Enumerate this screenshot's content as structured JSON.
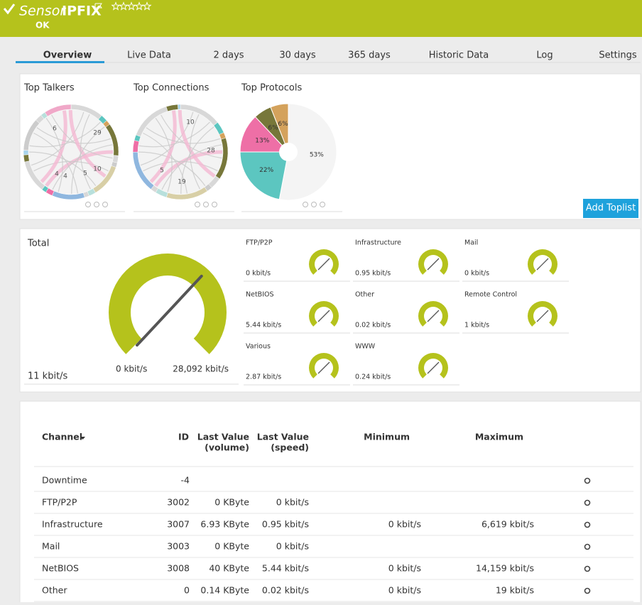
{
  "header": {
    "prefix": "Sensor",
    "name": "IPFIX",
    "status": "OK"
  },
  "tabs": [
    "Overview",
    "Live Data",
    "2 days",
    "30 days",
    "365 days",
    "Historic Data",
    "Log",
    "Settings"
  ],
  "toplists": [
    {
      "title": "Top Talkers",
      "labels": [
        "29",
        "10",
        "6",
        "5",
        "4",
        "4"
      ]
    },
    {
      "title": "Top Connections",
      "labels": [
        "10",
        "28",
        "19",
        "5"
      ]
    },
    {
      "title": "Top Protocols",
      "values": [
        53,
        22,
        13,
        6,
        6
      ],
      "value_labels": [
        "53%",
        "22%",
        "13%",
        "6%",
        "6%"
      ],
      "colors": [
        "#f4f4f4",
        "#5cc6c0",
        "#ee6fa6",
        "#77773a",
        "#d4a25c"
      ]
    }
  ],
  "add_toplist": "Add Toplist",
  "total": {
    "title": "Total",
    "value": "11 kbit/s",
    "min": "0 kbit/s",
    "max": "28,092 kbit/s"
  },
  "gauges": [
    {
      "name": "FTP/P2P",
      "value": "0 kbit/s"
    },
    {
      "name": "Infrastructure",
      "value": "0.95 kbit/s"
    },
    {
      "name": "Mail",
      "value": "0 kbit/s"
    },
    {
      "name": "NetBIOS",
      "value": "5.44 kbit/s"
    },
    {
      "name": "Other",
      "value": "0.02 kbit/s"
    },
    {
      "name": "Remote Control",
      "value": "1 kbit/s"
    },
    {
      "name": "Various",
      "value": "2.87 kbit/s"
    },
    {
      "name": "WWW",
      "value": "0.24 kbit/s"
    }
  ],
  "table": {
    "headers": [
      "Channel",
      "ID",
      [
        "Last Value",
        "(volume)"
      ],
      [
        "Last Value",
        "(speed)"
      ],
      "Minimum",
      "Maximum"
    ],
    "rows": [
      {
        "channel": "Downtime",
        "id": "-4"
      },
      {
        "channel": "FTP/P2P",
        "id": "3002",
        "volume": "0 KByte",
        "speed": "0 kbit/s"
      },
      {
        "channel": "Infrastructure",
        "id": "3007",
        "volume": "6.93 KByte",
        "speed": "0.95 kbit/s",
        "minimum": "0 kbit/s",
        "maximum": "6,619 kbit/s"
      },
      {
        "channel": "Mail",
        "id": "3003",
        "volume": "0 KByte",
        "speed": "0 kbit/s"
      },
      {
        "channel": "NetBIOS",
        "id": "3008",
        "volume": "40 KByte",
        "speed": "5.44 kbit/s",
        "minimum": "0 kbit/s",
        "maximum": "14,159 kbit/s"
      },
      {
        "channel": "Other",
        "id": "0",
        "volume": "0.14 KByte",
        "speed": "0.02 kbit/s",
        "minimum": "0 kbit/s",
        "maximum": "19 kbit/s"
      }
    ]
  }
}
